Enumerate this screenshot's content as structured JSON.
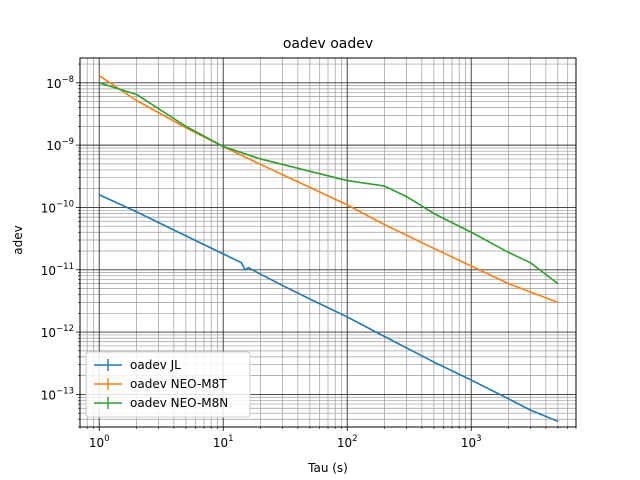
{
  "chart_data": {
    "type": "line",
    "title": "oadev oadev",
    "xlabel": "Tau (s)",
    "ylabel": "adev",
    "xscale": "log",
    "yscale": "log",
    "xlim": [
      0.7,
      7000
    ],
    "ylim": [
      3e-14,
      2.5e-08
    ],
    "grid": "major and minor",
    "legend_position": "lower-left",
    "x_ticks": [
      {
        "value": 1,
        "base": "10",
        "exp": "0"
      },
      {
        "value": 10,
        "base": "10",
        "exp": "1"
      },
      {
        "value": 100,
        "base": "10",
        "exp": "2"
      },
      {
        "value": 1000,
        "base": "10",
        "exp": "3"
      }
    ],
    "y_ticks": [
      {
        "value": 1e-13,
        "base": "10",
        "exp": "−13"
      },
      {
        "value": 1e-12,
        "base": "10",
        "exp": "−12"
      },
      {
        "value": 1e-11,
        "base": "10",
        "exp": "−11"
      },
      {
        "value": 1e-10,
        "base": "10",
        "exp": "−10"
      },
      {
        "value": 1e-09,
        "base": "10",
        "exp": "−9"
      },
      {
        "value": 1e-08,
        "base": "10",
        "exp": "−8"
      }
    ],
    "series": [
      {
        "name": "oadev JL",
        "color": "#1f77b4",
        "x": [
          1,
          2,
          5,
          10,
          14,
          15,
          16,
          20,
          30,
          50,
          100,
          200,
          300,
          500,
          1000,
          2000,
          3000,
          5000
        ],
        "y": [
          1.6e-10,
          8.5e-11,
          3.5e-11,
          1.8e-11,
          1.3e-11,
          1e-11,
          1.08e-11,
          8.5e-12,
          5.6e-12,
          3.4e-12,
          1.75e-12,
          8.5e-13,
          5.6e-13,
          3.3e-13,
          1.7e-13,
          8.5e-14,
          5.6e-14,
          3.7e-14
        ]
      },
      {
        "name": "oadev NEO-M8T",
        "color": "#ff7f0e",
        "x": [
          1,
          2,
          5,
          10,
          20,
          50,
          100,
          200,
          500,
          1000,
          2000,
          5000
        ],
        "y": [
          1.3e-08,
          5.2e-09,
          1.9e-09,
          9.5e-10,
          4.9e-10,
          2.1e-10,
          1.1e-10,
          5.3e-11,
          2.2e-11,
          1.15e-11,
          6e-12,
          3e-12
        ]
      },
      {
        "name": "oadev NEO-M8N",
        "color": "#2ca02c",
        "x": [
          1,
          2,
          5,
          10,
          20,
          50,
          100,
          200,
          300,
          500,
          1000,
          2000,
          3000,
          5000
        ],
        "y": [
          1e-08,
          6.5e-09,
          2e-09,
          9.5e-10,
          6e-10,
          3.8e-10,
          2.7e-10,
          2.2e-10,
          1.5e-10,
          8e-11,
          4e-11,
          1.9e-11,
          1.3e-11,
          6e-12
        ]
      }
    ]
  }
}
